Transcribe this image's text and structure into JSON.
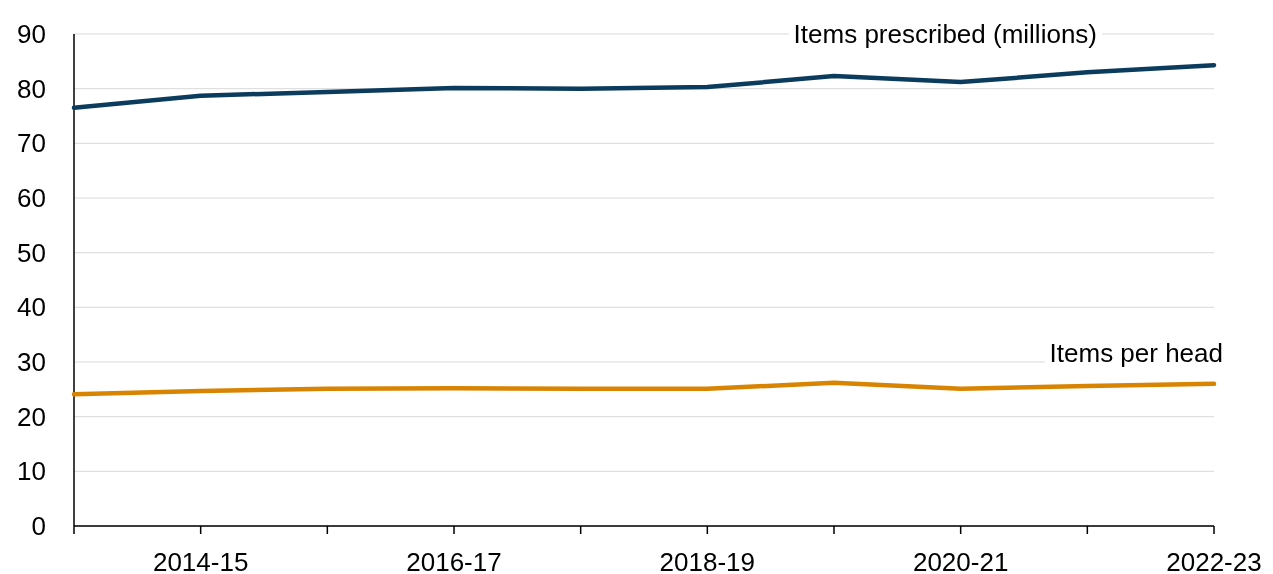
{
  "chart_data": {
    "type": "line",
    "categories": [
      null,
      "2014-15",
      null,
      "2016-17",
      null,
      "2018-19",
      null,
      "2020-21",
      null,
      "2022-23"
    ],
    "series": [
      {
        "name": "Items prescribed (millions)",
        "color": "#0b3c5d",
        "values": [
          76.5,
          78.7,
          79.4,
          80.1,
          80.0,
          80.3,
          82.3,
          81.2,
          83.0,
          84.3
        ]
      },
      {
        "name": "Items per head",
        "color": "#d98400",
        "values": [
          24.1,
          24.7,
          25.1,
          25.2,
          25.1,
          25.1,
          26.2,
          25.1,
          25.6,
          26.0
        ]
      }
    ],
    "ylim": [
      0,
      90
    ],
    "yticks": [
      0,
      10,
      20,
      30,
      40,
      50,
      60,
      70,
      80,
      90
    ],
    "grid": "y",
    "marker": "none",
    "line_style": "solid"
  }
}
